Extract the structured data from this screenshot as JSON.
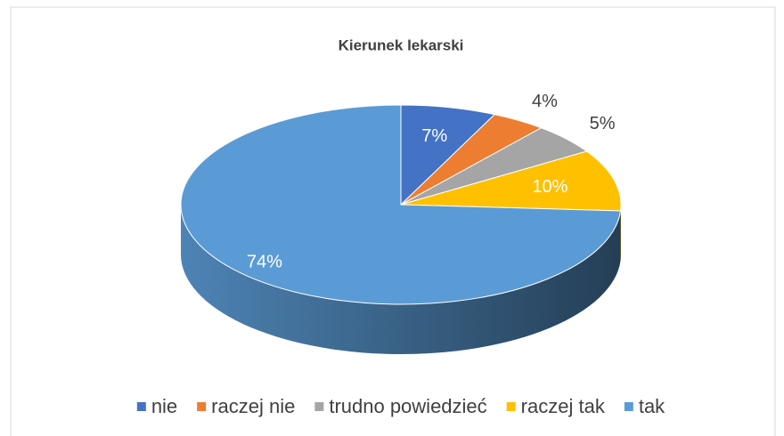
{
  "chart_data": {
    "type": "pie3d",
    "title": "Kierunek lekarski",
    "categories": [
      "nie",
      "raczej nie",
      "trudno powiedzieć",
      "raczej tak",
      "tak"
    ],
    "values": [
      7,
      4,
      5,
      10,
      74
    ],
    "value_labels": [
      "7%",
      "4%",
      "5%",
      "10%",
      "74%"
    ],
    "colors": [
      "#4472c4",
      "#ed7d31",
      "#a5a5a5",
      "#ffc000",
      "#5b9bd5"
    ],
    "legend": "bottom"
  }
}
